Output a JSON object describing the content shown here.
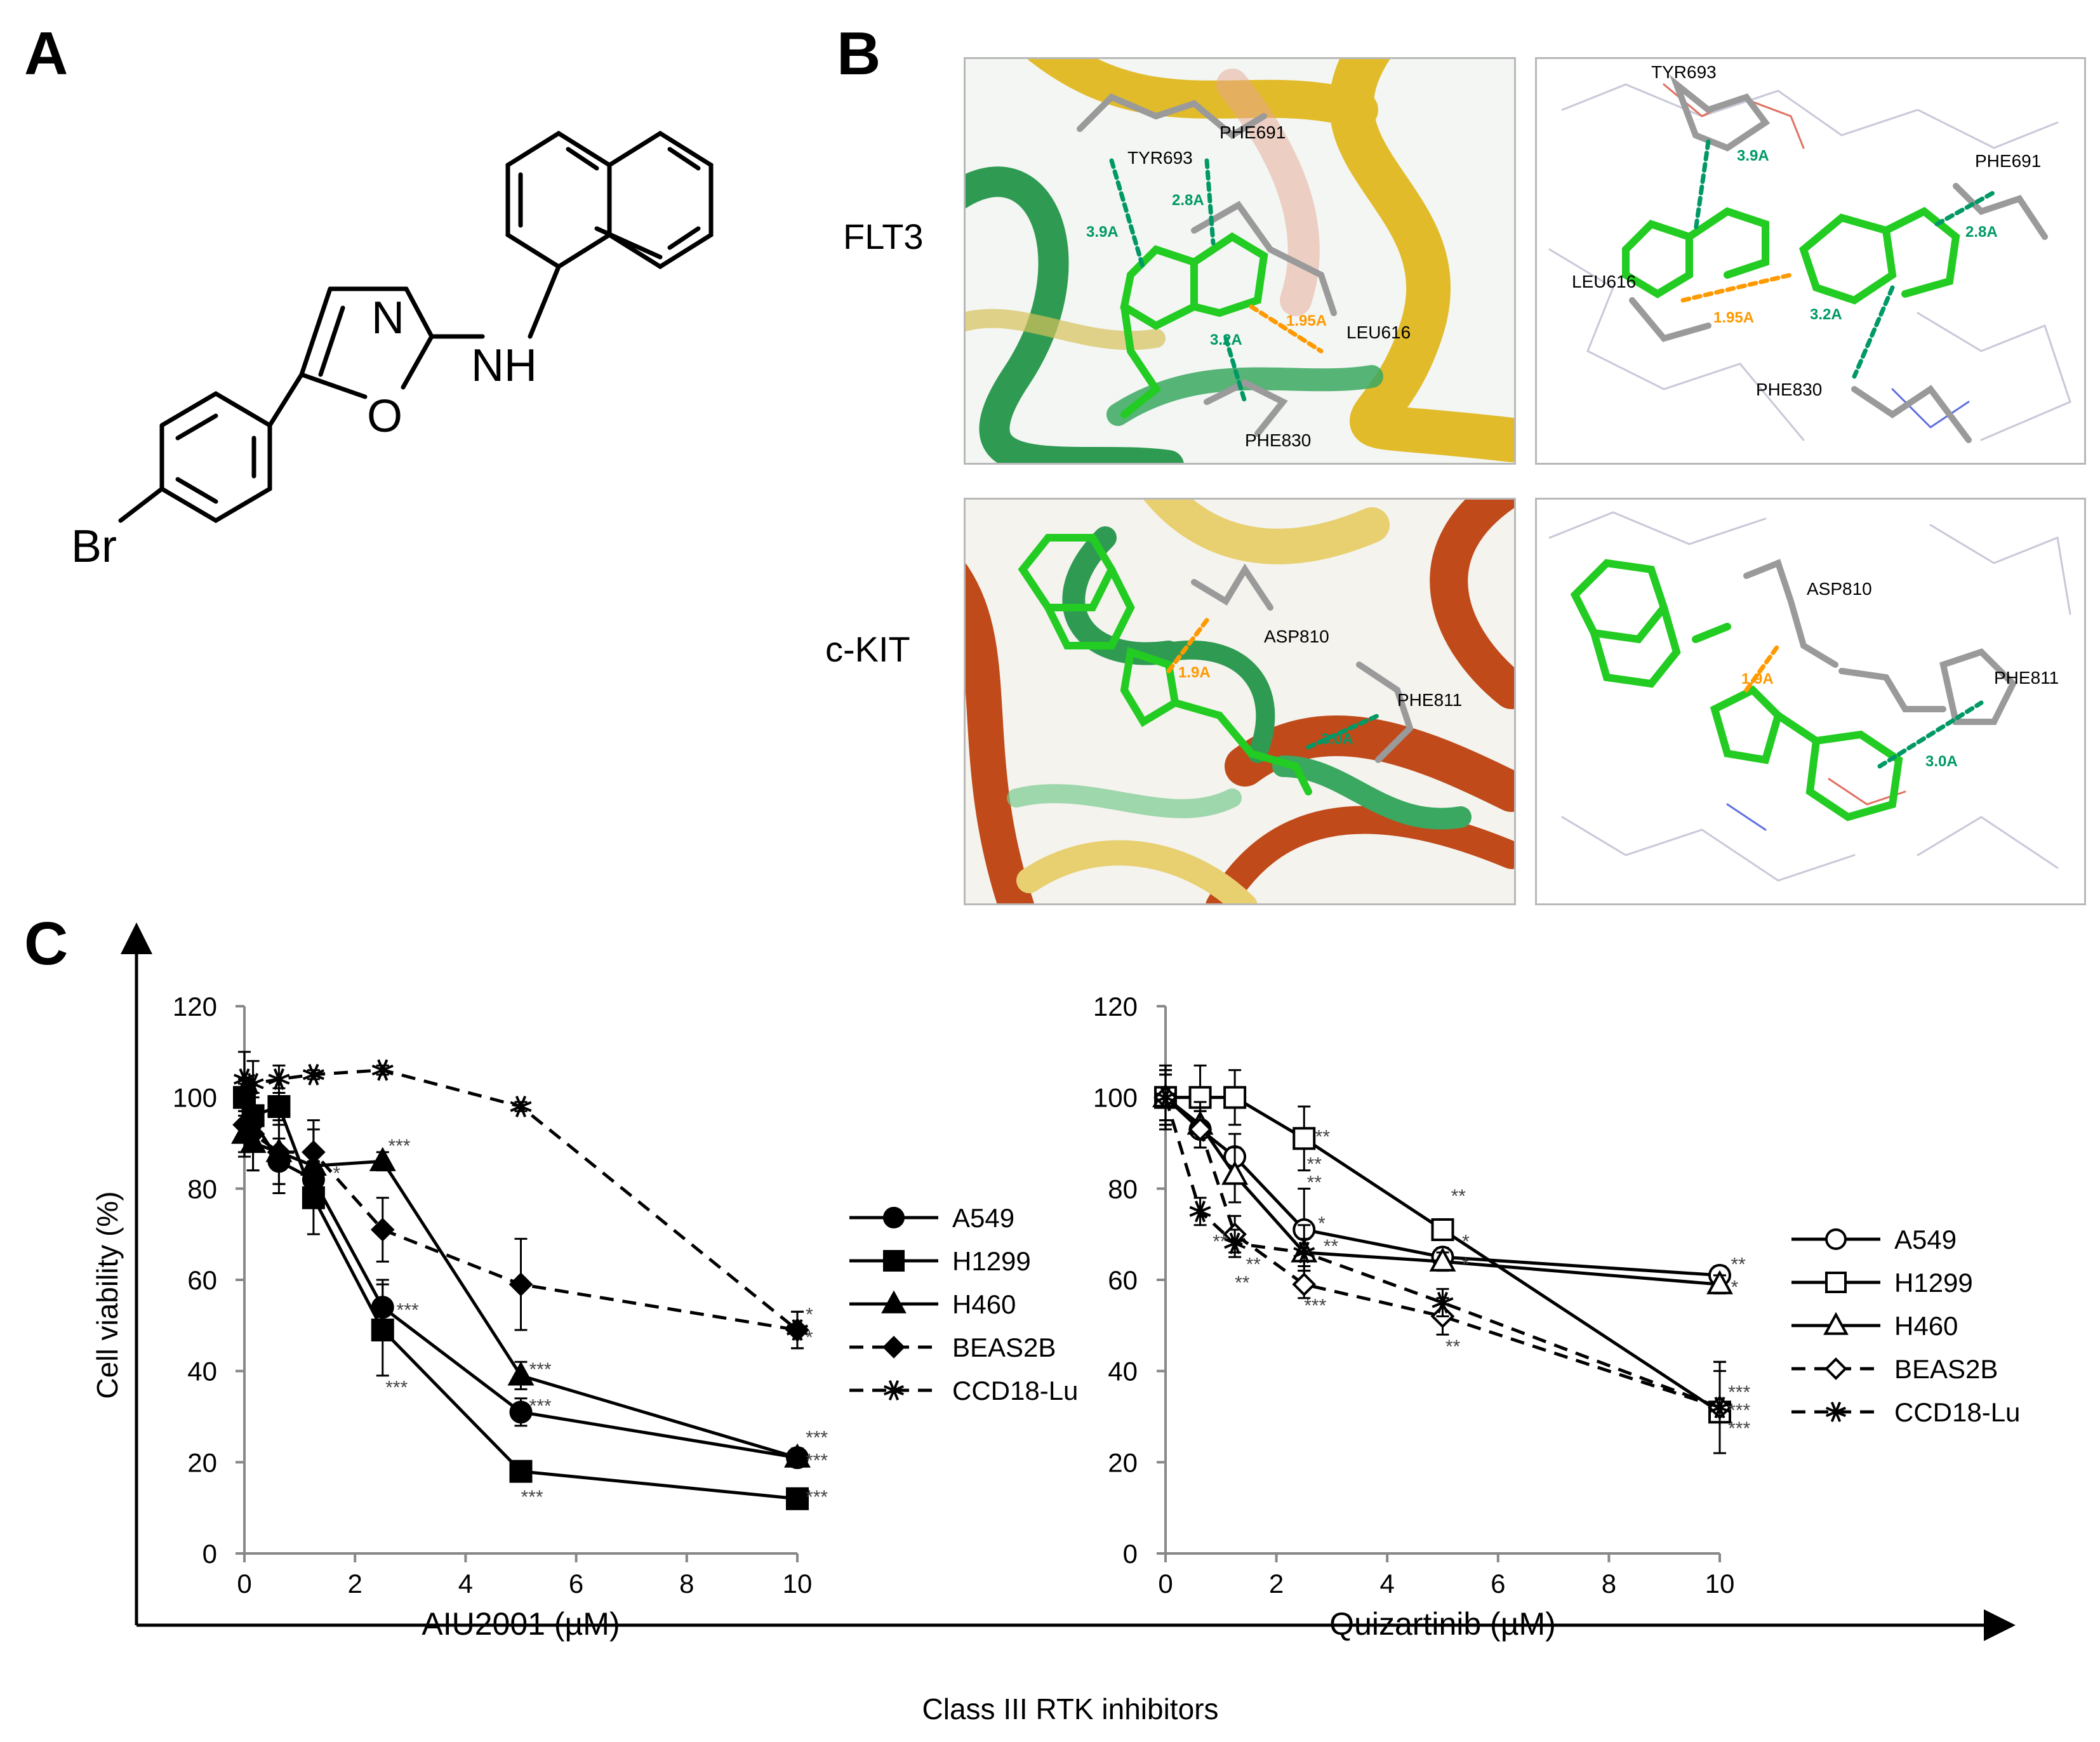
{
  "panel_labels": {
    "a": "A",
    "b": "B",
    "c": "C"
  },
  "molecule": {
    "atom_n": "N",
    "atom_nh": "NH",
    "atom_o": "O",
    "atom_br": "Br"
  },
  "docking": {
    "row_labels": [
      "FLT3",
      "c-KIT"
    ],
    "panels": [
      {
        "labels": {
          "tyr693": "TYR693",
          "phe691": "PHE691",
          "leu616": "LEU616",
          "phe830": "PHE830"
        },
        "distances": {
          "d39": "3.9A",
          "d28": "2.8A",
          "d32": "3.2A",
          "d195": "1.95A"
        }
      },
      {
        "labels": {
          "tyr693": "TYR693",
          "phe691": "PHE691",
          "leu616": "LEU616",
          "phe830": "PHE830"
        },
        "distances": {
          "d39": "3.9A",
          "d28": "2.8A",
          "d32": "3.2A",
          "d195": "1.95A"
        }
      },
      {
        "labels": {
          "asp810": "ASP810",
          "phe811": "PHE811"
        },
        "distances": {
          "d19": "1.9A",
          "d30": "3.0A"
        }
      },
      {
        "labels": {
          "asp810": "ASP810",
          "phe811": "PHE811"
        },
        "distances": {
          "d19": "1.9A",
          "d30": "3.0A"
        }
      }
    ],
    "colors": {
      "ligand": "#22cc22",
      "residue": "#9a9a9a",
      "hbond": "#ff9900",
      "pi": "#009966",
      "ribbon_green": "#33aa55",
      "ribbon_yellow": "#e8c030",
      "ribbon_red": "#c04a1a"
    }
  },
  "figure_c": {
    "ylabel": "Cell viability (%)",
    "shared_xlabel": "Class III RTK inhibitors"
  },
  "chart_data": [
    {
      "type": "line",
      "xlabel": "AIU2001 (µM)",
      "ylabel": "Cell viability (%)",
      "xlim": [
        0,
        10
      ],
      "ylim": [
        0,
        120
      ],
      "xticks": [
        0,
        2,
        4,
        6,
        8,
        10
      ],
      "yticks": [
        0,
        20,
        40,
        60,
        80,
        100,
        120
      ],
      "x": [
        0,
        0.156,
        0.625,
        1.25,
        2.5,
        5,
        10
      ],
      "legend_position": "right",
      "series": [
        {
          "name": "A549",
          "marker": "circle-filled",
          "dash": false,
          "values": [
            100,
            95,
            86,
            82,
            54,
            31,
            21
          ],
          "errors": [
            4,
            6,
            5,
            6,
            6,
            3,
            2
          ]
        },
        {
          "name": "H1299",
          "marker": "square-filled",
          "dash": false,
          "values": [
            100,
            96,
            98,
            78,
            49,
            18,
            12
          ],
          "errors": [
            3,
            5,
            4,
            8,
            10,
            2,
            1
          ]
        },
        {
          "name": "H460",
          "marker": "triangle-filled",
          "dash": false,
          "values": [
            92,
            90,
            88,
            85,
            86,
            39,
            21
          ],
          "errors": [
            5,
            6,
            7,
            8,
            2,
            3,
            2
          ]
        },
        {
          "name": "BEAS2B",
          "marker": "diamond-filled",
          "dash": true,
          "values": [
            94,
            92,
            88,
            88,
            71,
            59,
            49
          ],
          "errors": [
            6,
            8,
            9,
            7,
            7,
            10,
            4
          ]
        },
        {
          "name": "CCD18-Lu",
          "marker": "star",
          "dash": true,
          "values": [
            104,
            103,
            104,
            105,
            106,
            98,
            49
          ],
          "errors": [
            6,
            5,
            3,
            1,
            1,
            1,
            4
          ]
        }
      ],
      "annotations": [
        {
          "x": 1.6,
          "y": 82,
          "text": "*"
        },
        {
          "x": 2.6,
          "y": 88,
          "text": "***"
        },
        {
          "x": 2.75,
          "y": 52,
          "text": "***"
        },
        {
          "x": 2.55,
          "y": 35,
          "text": "***"
        },
        {
          "x": 5.15,
          "y": 39,
          "text": "***"
        },
        {
          "x": 5.15,
          "y": 31,
          "text": "***"
        },
        {
          "x": 5.0,
          "y": 11,
          "text": "***"
        },
        {
          "x": 10.15,
          "y": 51,
          "text": "*"
        },
        {
          "x": 10.15,
          "y": 46,
          "text": "*"
        },
        {
          "x": 10.15,
          "y": 24,
          "text": "***"
        },
        {
          "x": 10.15,
          "y": 19,
          "text": "***"
        },
        {
          "x": 10.15,
          "y": 11,
          "text": "***"
        }
      ]
    },
    {
      "type": "line",
      "xlabel": "Quizartinib (µM)",
      "ylabel": "",
      "xlim": [
        0,
        10
      ],
      "ylim": [
        0,
        120
      ],
      "xticks": [
        0,
        2,
        4,
        6,
        8,
        10
      ],
      "yticks": [
        0,
        20,
        40,
        60,
        80,
        100,
        120
      ],
      "x": [
        0,
        0.625,
        1.25,
        2.5,
        5,
        10
      ],
      "legend_position": "right",
      "series": [
        {
          "name": "A549",
          "marker": "circle-open",
          "dash": false,
          "values": [
            100,
            93,
            87,
            71,
            65,
            61
          ],
          "errors": [
            5,
            4,
            5,
            9,
            2,
            2
          ]
        },
        {
          "name": "H1299",
          "marker": "square-open",
          "dash": false,
          "values": [
            100,
            100,
            100,
            91,
            71,
            31
          ],
          "errors": [
            7,
            7,
            6,
            7,
            2,
            9
          ]
        },
        {
          "name": "H460",
          "marker": "triangle-open",
          "dash": false,
          "values": [
            100,
            94,
            83,
            66,
            64,
            59
          ],
          "errors": [
            6,
            5,
            6,
            6,
            2,
            2
          ]
        },
        {
          "name": "BEAS2B",
          "marker": "diamond-open",
          "dash": true,
          "values": [
            100,
            93,
            70,
            59,
            52,
            32
          ],
          "errors": [
            5,
            4,
            4,
            3,
            4,
            10
          ]
        },
        {
          "name": "CCD18-Lu",
          "marker": "star",
          "dash": true,
          "values": [
            100,
            75,
            68,
            66,
            55,
            32
          ],
          "errors": [
            6,
            3,
            3,
            3,
            3,
            10
          ]
        }
      ],
      "annotations": [
        {
          "x": 2.7,
          "y": 90,
          "text": "**"
        },
        {
          "x": 2.55,
          "y": 84,
          "text": "**"
        },
        {
          "x": 2.55,
          "y": 80,
          "text": "**"
        },
        {
          "x": 2.75,
          "y": 71,
          "text": "*"
        },
        {
          "x": 2.85,
          "y": 66,
          "text": "**"
        },
        {
          "x": 2.5,
          "y": 53,
          "text": "***"
        },
        {
          "x": 5.15,
          "y": 77,
          "text": "**"
        },
        {
          "x": 5.35,
          "y": 67,
          "text": "*"
        },
        {
          "x": 5.35,
          "y": 62,
          "text": "*"
        },
        {
          "x": 5.05,
          "y": 44,
          "text": "**"
        },
        {
          "x": 0.85,
          "y": 67,
          "text": "**"
        },
        {
          "x": 1.45,
          "y": 62,
          "text": "**"
        },
        {
          "x": 1.25,
          "y": 58,
          "text": "**"
        },
        {
          "x": 10.2,
          "y": 62,
          "text": "**"
        },
        {
          "x": 10.2,
          "y": 57,
          "text": "*"
        },
        {
          "x": 10.15,
          "y": 34,
          "text": "***"
        },
        {
          "x": 10.15,
          "y": 30,
          "text": "***"
        },
        {
          "x": 10.15,
          "y": 26,
          "text": "***"
        }
      ]
    }
  ]
}
